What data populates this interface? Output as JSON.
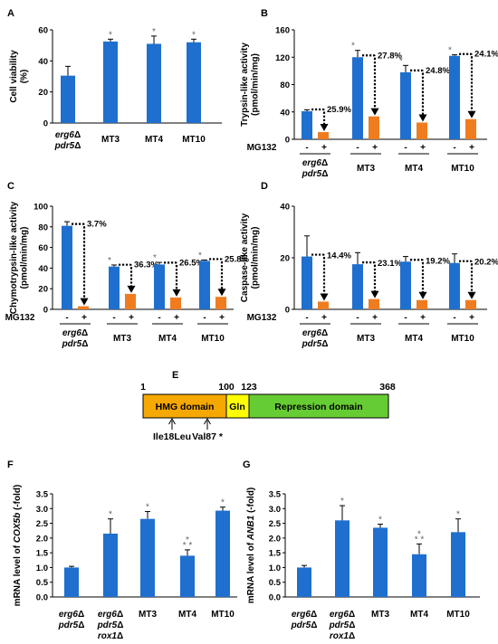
{
  "colors": {
    "untreated": "#1f6fcf",
    "treated": "#f07c20",
    "hmg": "#f5a800",
    "gln": "#ffff00",
    "repr": "#66cc33"
  },
  "strains": [
    "erg6Δ pdr5Δ",
    "MT3",
    "MT4",
    "MT10"
  ],
  "strains_rox": [
    "erg6Δ pdr5Δ",
    "erg6Δ pdr5Δ rox1Δ",
    "MT3",
    "MT4",
    "MT10"
  ],
  "mg132": {
    "label": "MG132",
    "minus": "-",
    "plus": "+"
  },
  "chart_data": [
    {
      "panel": "A",
      "type": "bar",
      "ylabel": "Cell viability (%)",
      "ylim": [
        0,
        60
      ],
      "yticks": [
        "0",
        "20",
        "40",
        "60"
      ],
      "categories": [
        "erg6Δ pdr5Δ",
        "MT3",
        "MT4",
        "MT10"
      ],
      "values": [
        30.5,
        52.5,
        51,
        52
      ],
      "errors": [
        6,
        1.5,
        5,
        2
      ],
      "significant": [
        false,
        true,
        true,
        true
      ]
    },
    {
      "panel": "B",
      "type": "bar",
      "ylabel": "Trypsin-like activity (pmol/min/mg)",
      "ylim": [
        0,
        160
      ],
      "yticks": [
        "0",
        "40",
        "80",
        "120",
        "160"
      ],
      "categories": [
        "erg6Δ pdr5Δ",
        "MT3",
        "MT4",
        "MT10"
      ],
      "series": [
        {
          "name": "-",
          "values": [
            41,
            120,
            98,
            122
          ],
          "errors": [
            2,
            10,
            10,
            1.5
          ]
        },
        {
          "name": "+",
          "values": [
            10.5,
            33.5,
            24.5,
            29.5
          ]
        }
      ],
      "percent_labels": [
        "25.9%",
        "27.8%",
        "24.8%",
        "24.1%"
      ],
      "significant": [
        false,
        true,
        true,
        true
      ]
    },
    {
      "panel": "C",
      "type": "bar",
      "ylabel": "Chymotrypsin-like activity (pmol/min/mg)",
      "ylim": [
        0,
        100
      ],
      "yticks": [
        "0",
        "20",
        "40",
        "60",
        "80",
        "100"
      ],
      "categories": [
        "erg6Δ pdr5Δ",
        "MT3",
        "MT4",
        "MT10"
      ],
      "series": [
        {
          "name": "-",
          "values": [
            81,
            41.5,
            43.5,
            47
          ]
        },
        {
          "name": "+",
          "values": [
            3,
            15,
            11.5,
            12.1
          ]
        }
      ],
      "errors": [
        4,
        1.5,
        2,
        0.8
      ],
      "percent_labels": [
        "3.7%",
        "36.3%",
        "26.5%",
        "25.8%"
      ],
      "significant": [
        false,
        true,
        true,
        true
      ]
    },
    {
      "panel": "D",
      "type": "bar",
      "ylabel": "Caspase-like activity (pmol/min/mg)",
      "ylim": [
        0,
        40
      ],
      "yticks": [
        "0",
        "20",
        "40"
      ],
      "categories": [
        "erg6Δ pdr5Δ",
        "MT3",
        "MT4",
        "MT10"
      ],
      "series": [
        {
          "name": "-",
          "values": [
            20.5,
            17.5,
            18.5,
            18
          ]
        },
        {
          "name": "+",
          "values": [
            3,
            4,
            3.6,
            3.6
          ]
        }
      ],
      "errors": [
        8,
        4.5,
        2,
        3.5
      ],
      "percent_labels": [
        "14.4%",
        "23.1%",
        "19.2%",
        "20.2%"
      ]
    },
    {
      "panel": "F",
      "type": "bar",
      "ylabel": "mRNA level of COX5b (-fold)",
      "ylabel_italic": "COX5b",
      "ylim": [
        0,
        3.5
      ],
      "yticks": [
        "0.0",
        "0.5",
        "1.0",
        "1.5",
        "2.0",
        "2.5",
        "3.0",
        "3.5"
      ],
      "categories": [
        "erg6Δ pdr5Δ",
        "erg6Δ pdr5Δ rox1Δ",
        "MT3",
        "MT4",
        "MT10"
      ],
      "values": [
        1.0,
        2.15,
        2.65,
        1.4,
        2.93
      ],
      "errors": [
        0.04,
        0.5,
        0.25,
        0.2,
        0.12
      ],
      "stars": [
        "",
        "*",
        "*",
        "*\n* *",
        "*"
      ]
    },
    {
      "panel": "G",
      "type": "bar",
      "ylabel": "mRNA level of ANB1 (-fold)",
      "ylabel_italic": "ANB1",
      "ylim": [
        0,
        3.5
      ],
      "yticks": [
        "0.0",
        "0.5",
        "1.0",
        "1.5",
        "2.0",
        "2.5",
        "3.0",
        "3.5"
      ],
      "categories": [
        "erg6Δ pdr5Δ",
        "erg6Δ pdr5Δ rox1Δ",
        "MT3",
        "MT4",
        "MT10"
      ],
      "values": [
        1.0,
        2.6,
        2.35,
        1.45,
        2.2
      ],
      "errors": [
        0.07,
        0.5,
        0.12,
        0.35,
        0.45
      ],
      "stars": [
        "",
        "*",
        "*",
        "*\n* *",
        "*"
      ]
    }
  ],
  "panel_e": {
    "label": "E",
    "positions": [
      "1",
      "100",
      "123",
      "368"
    ],
    "domains": [
      "HMG domain",
      "Gln",
      "Repression domain"
    ],
    "mutations": [
      "Ile18Leu",
      "Val87 *"
    ]
  }
}
